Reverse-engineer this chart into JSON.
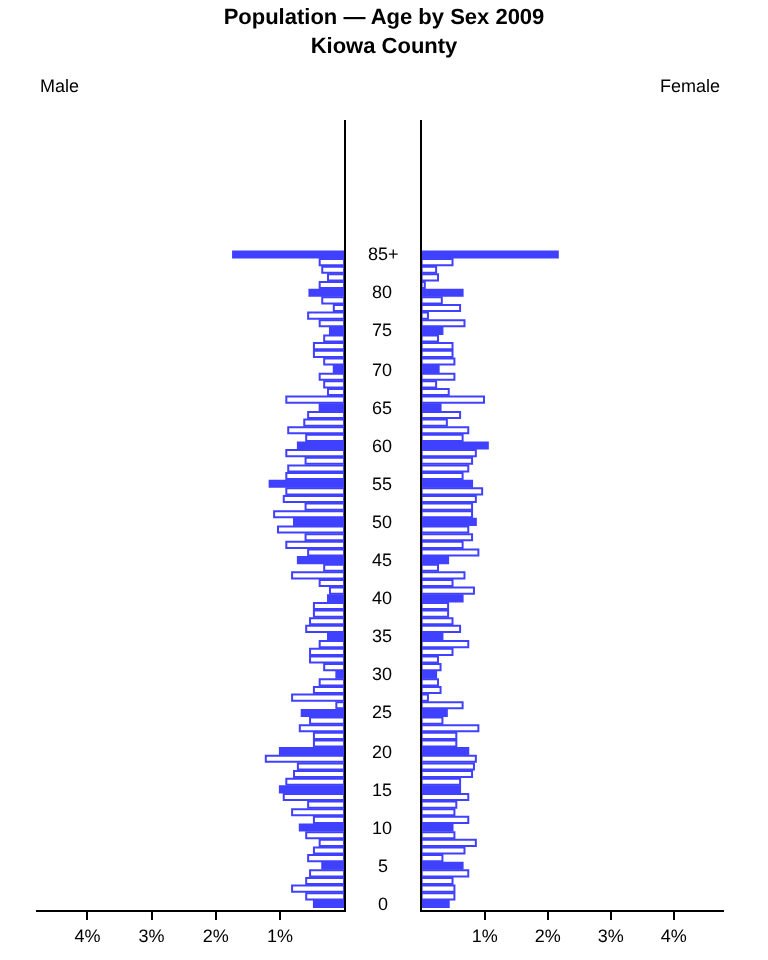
{
  "chart_data": [
    {
      "type": "bar",
      "title": "Population — Age by Sex 2009",
      "subtitle": "Kiowa County",
      "orientation": "horizontal",
      "tick_labels": "xy",
      "categories": [
        "85+",
        null,
        null,
        null,
        null,
        "80",
        null,
        null,
        null,
        null,
        "75",
        null,
        null,
        null,
        null,
        "70",
        null,
        null,
        null,
        null,
        "65",
        null,
        null,
        null,
        null,
        "60",
        null,
        null,
        null,
        null,
        "55",
        null,
        null,
        null,
        null,
        "50",
        null,
        null,
        null,
        null,
        "45",
        null,
        null,
        null,
        null,
        "40",
        null,
        null,
        null,
        null,
        "35",
        null,
        null,
        null,
        null,
        "30",
        null,
        null,
        null,
        null,
        "25",
        null,
        null,
        null,
        null,
        "20",
        null,
        null,
        null,
        null,
        "15",
        null,
        null,
        null,
        null,
        "10",
        null,
        null,
        null,
        null,
        "5",
        null,
        null,
        null,
        null,
        "0"
      ],
      "xlim": [
        4.8,
        0
      ],
      "xticks": [
        {
          "value": 4,
          "label": "4%"
        },
        {
          "value": 3,
          "label": "3%"
        },
        {
          "value": 2,
          "label": "2%"
        },
        {
          "value": 1,
          "label": "1%"
        }
      ],
      "series": [
        {
          "name": "Male",
          "color": "#4040ff",
          "colors": [
            "#4040ff",
            "#ffffff",
            "#ffffff",
            "#ffffff",
            "#ffffff",
            "#4040ff",
            "#ffffff",
            "#ffffff",
            "#ffffff",
            "#ffffff",
            "#4040ff",
            "#ffffff",
            "#ffffff",
            "#ffffff",
            "#ffffff",
            "#4040ff",
            "#ffffff",
            "#ffffff",
            "#ffffff",
            "#ffffff",
            "#4040ff",
            "#ffffff",
            "#ffffff",
            "#ffffff",
            "#ffffff",
            "#4040ff",
            "#ffffff",
            "#ffffff",
            "#ffffff",
            "#ffffff",
            "#4040ff",
            "#ffffff",
            "#ffffff",
            "#ffffff",
            "#ffffff",
            "#4040ff",
            "#ffffff",
            "#ffffff",
            "#ffffff",
            "#ffffff",
            "#4040ff",
            "#ffffff",
            "#ffffff",
            "#ffffff",
            "#ffffff",
            "#4040ff",
            "#ffffff",
            "#ffffff",
            "#ffffff",
            "#ffffff",
            "#4040ff",
            "#ffffff",
            "#ffffff",
            "#ffffff",
            "#ffffff",
            "#4040ff",
            "#ffffff",
            "#ffffff",
            "#ffffff",
            "#ffffff",
            "#4040ff",
            "#ffffff",
            "#ffffff",
            "#ffffff",
            "#ffffff",
            "#4040ff",
            "#ffffff",
            "#ffffff",
            "#ffffff",
            "#ffffff",
            "#4040ff",
            "#ffffff",
            "#ffffff",
            "#ffffff",
            "#ffffff",
            "#4040ff",
            "#ffffff",
            "#ffffff",
            "#ffffff",
            "#ffffff",
            "#4040ff",
            "#ffffff",
            "#ffffff",
            "#ffffff",
            "#ffffff",
            "#4040ff"
          ],
          "values": [
            1.73,
            0.38,
            0.34,
            0.25,
            0.38,
            0.54,
            0.34,
            0.16,
            0.56,
            0.38,
            0.22,
            0.31,
            0.47,
            0.47,
            0.31,
            0.16,
            0.38,
            0.31,
            0.25,
            0.9,
            0.38,
            0.56,
            0.62,
            0.87,
            0.59,
            0.72,
            0.9,
            0.6,
            0.87,
            0.9,
            1.16,
            0.9,
            0.94,
            0.6,
            1.09,
            0.78,
            1.03,
            0.6,
            0.9,
            0.56,
            0.72,
            0.31,
            0.81,
            0.38,
            0.22,
            0.25,
            0.47,
            0.47,
            0.53,
            0.59,
            0.25,
            0.38,
            0.53,
            0.53,
            0.31,
            0.12,
            0.38,
            0.47,
            0.81,
            0.12,
            0.66,
            0.53,
            0.69,
            0.47,
            0.47,
            1.0,
            1.22,
            0.72,
            0.78,
            0.9,
            1.0,
            0.94,
            0.56,
            0.81,
            0.47,
            0.69,
            0.59,
            0.38,
            0.47,
            0.56,
            0.34,
            0.53,
            0.59,
            0.81,
            0.59,
            0.47
          ]
        }
      ]
    },
    {
      "type": "bar",
      "orientation": "horizontal",
      "tick_labels": "x",
      "categories": [
        "85+",
        null,
        null,
        null,
        null,
        "80",
        null,
        null,
        null,
        null,
        "75",
        null,
        null,
        null,
        null,
        "70",
        null,
        null,
        null,
        null,
        "65",
        null,
        null,
        null,
        null,
        "60",
        null,
        null,
        null,
        null,
        "55",
        null,
        null,
        null,
        null,
        "50",
        null,
        null,
        null,
        null,
        "45",
        null,
        null,
        null,
        null,
        "40",
        null,
        null,
        null,
        null,
        "35",
        null,
        null,
        null,
        null,
        "30",
        null,
        null,
        null,
        null,
        "25",
        null,
        null,
        null,
        null,
        "20",
        null,
        null,
        null,
        null,
        "15",
        null,
        null,
        null,
        null,
        "10",
        null,
        null,
        null,
        null,
        "5",
        null,
        null,
        null,
        null,
        "0"
      ],
      "xlim": [
        0,
        4.8
      ],
      "xticks": [
        {
          "value": 1,
          "label": "1%"
        },
        {
          "value": 2,
          "label": "2%"
        },
        {
          "value": 3,
          "label": "3%"
        },
        {
          "value": 4,
          "label": "4%"
        }
      ],
      "series": [
        {
          "name": "Female",
          "color": "#4040ff",
          "colors": [
            "#4040ff",
            "#ffffff",
            "#ffffff",
            "#ffffff",
            "#ffffff",
            "#4040ff",
            "#ffffff",
            "#ffffff",
            "#ffffff",
            "#ffffff",
            "#4040ff",
            "#ffffff",
            "#ffffff",
            "#ffffff",
            "#ffffff",
            "#4040ff",
            "#ffffff",
            "#ffffff",
            "#ffffff",
            "#ffffff",
            "#4040ff",
            "#ffffff",
            "#ffffff",
            "#ffffff",
            "#ffffff",
            "#4040ff",
            "#ffffff",
            "#ffffff",
            "#ffffff",
            "#ffffff",
            "#4040ff",
            "#ffffff",
            "#ffffff",
            "#ffffff",
            "#ffffff",
            "#4040ff",
            "#ffffff",
            "#ffffff",
            "#ffffff",
            "#ffffff",
            "#4040ff",
            "#ffffff",
            "#ffffff",
            "#ffffff",
            "#ffffff",
            "#4040ff",
            "#ffffff",
            "#ffffff",
            "#ffffff",
            "#ffffff",
            "#4040ff",
            "#ffffff",
            "#ffffff",
            "#ffffff",
            "#ffffff",
            "#4040ff",
            "#ffffff",
            "#ffffff",
            "#ffffff",
            "#ffffff",
            "#4040ff",
            "#ffffff",
            "#ffffff",
            "#ffffff",
            "#ffffff",
            "#4040ff",
            "#ffffff",
            "#ffffff",
            "#ffffff",
            "#ffffff",
            "#4040ff",
            "#ffffff",
            "#ffffff",
            "#ffffff",
            "#ffffff",
            "#4040ff",
            "#ffffff",
            "#ffffff",
            "#ffffff",
            "#ffffff",
            "#4040ff",
            "#ffffff",
            "#ffffff",
            "#ffffff",
            "#ffffff",
            "#4040ff"
          ],
          "values": [
            2.16,
            0.49,
            0.23,
            0.26,
            0.05,
            0.65,
            0.32,
            0.61,
            0.1,
            0.68,
            0.33,
            0.26,
            0.49,
            0.49,
            0.52,
            0.27,
            0.52,
            0.23,
            0.43,
            0.99,
            0.3,
            0.61,
            0.4,
            0.74,
            0.65,
            1.05,
            0.86,
            0.8,
            0.74,
            0.65,
            0.8,
            0.96,
            0.86,
            0.8,
            0.8,
            0.86,
            0.74,
            0.8,
            0.65,
            0.9,
            0.42,
            0.26,
            0.68,
            0.49,
            0.83,
            0.65,
            0.42,
            0.42,
            0.49,
            0.61,
            0.33,
            0.74,
            0.49,
            0.26,
            0.3,
            0.23,
            0.26,
            0.3,
            0.1,
            0.65,
            0.4,
            0.33,
            0.9,
            0.55,
            0.55,
            0.74,
            0.86,
            0.83,
            0.8,
            0.61,
            0.61,
            0.74,
            0.55,
            0.52,
            0.74,
            0.49,
            0.52,
            0.86,
            0.68,
            0.33,
            0.65,
            0.74,
            0.49,
            0.52,
            0.52,
            0.43
          ]
        }
      ]
    }
  ]
}
